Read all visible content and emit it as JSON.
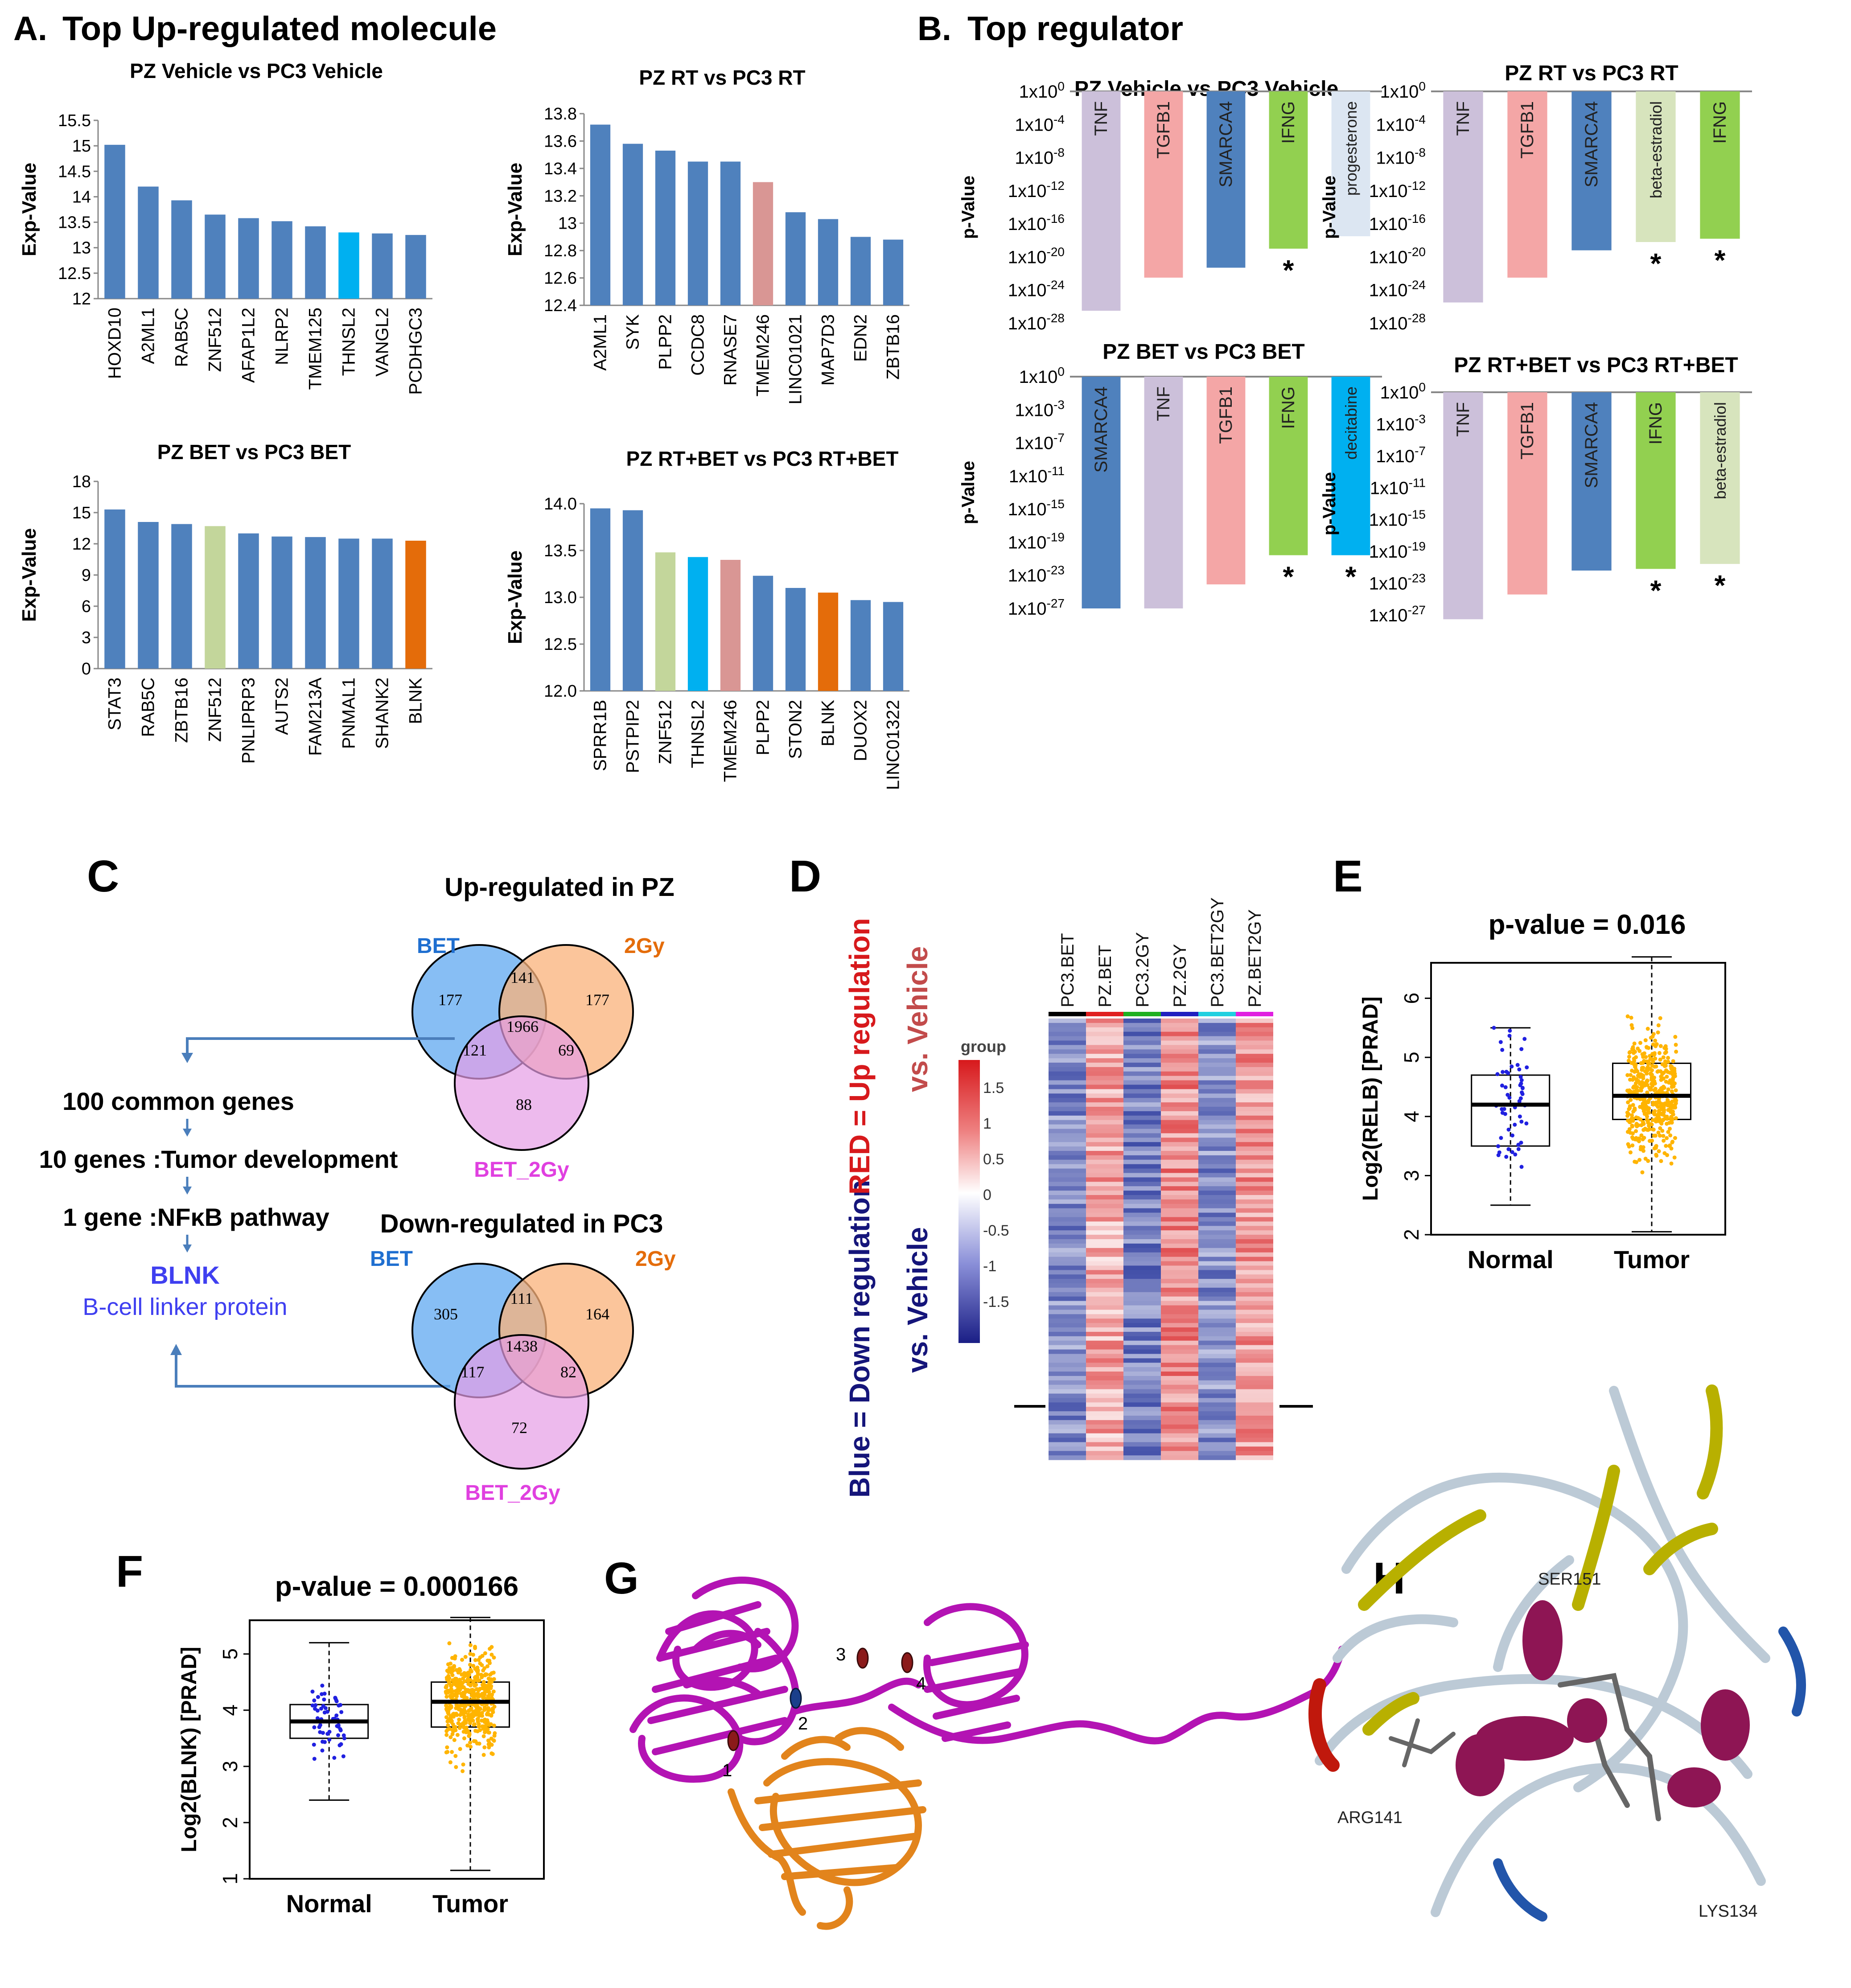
{
  "colors": {
    "bar_blue": "#4F81BD",
    "bar_cyan": "#00B0F0",
    "bar_pink": "#D99694",
    "bar_lightgreen": "#C3D69B",
    "bar_orange": "#E46C0A",
    "reg_tnf": "#CCC0DA",
    "reg_tgfb1": "#F4A6A6",
    "reg_smarca4": "#4F81BD",
    "reg_ifng": "#92D050",
    "reg_progesterone": "#DCE6F2",
    "reg_beta_estradiol": "#D7E4BD",
    "reg_decitabine": "#00B0F0",
    "venn_bet": "#5FA8F0",
    "venn_2gy": "#F9B27A",
    "venn_bet2gy": "#E59CE6",
    "label_blue": "#1F6FD0",
    "label_orange": "#E46C0A",
    "label_magenta": "#E040E0",
    "blnk_text": "#3F3FF0",
    "dots_normal": "#2020E0",
    "dots_tumor": "#FFB400",
    "heat_hi": "#D7191C",
    "heat_lo": "#2B3A9E",
    "protein_magenta": "#B313B3",
    "protein_orange": "#E2841C"
  },
  "panel_labels": {
    "A": "A.",
    "B": "B.",
    "C": "C",
    "D": "D",
    "E": "E",
    "F": "F",
    "G": "G",
    "H": "H"
  },
  "panelA": {
    "heading": "Top Up-regulated  molecule",
    "y_axis_label": "Exp-Value"
  },
  "panelB": {
    "heading": "Top regulator",
    "y_axis_label": "p-Value",
    "star": "*"
  },
  "chart_data": [
    {
      "id": "A1",
      "type": "bar",
      "title": "PZ Vehicle vs PC3 Vehicle",
      "ylabel": "Exp-Value",
      "ylim": [
        12,
        15.5
      ],
      "yticks": [
        "12",
        "12.5",
        "13",
        "13.5",
        "14",
        "14.5",
        "15",
        "15.5"
      ],
      "categories": [
        "HOXD10",
        "A2ML1",
        "RAB5C",
        "ZNF512",
        "AFAP1L2",
        "NLRP2",
        "TMEM125",
        "THNSL2",
        "VANGL2",
        "PCDHGC3"
      ],
      "values": [
        15.02,
        14.2,
        13.93,
        13.65,
        13.58,
        13.52,
        13.42,
        13.3,
        13.28,
        13.25
      ],
      "bar_colors": [
        "bar_blue",
        "bar_blue",
        "bar_blue",
        "bar_blue",
        "bar_blue",
        "bar_blue",
        "bar_blue",
        "bar_cyan",
        "bar_blue",
        "bar_blue"
      ]
    },
    {
      "id": "A2",
      "type": "bar",
      "title": "PZ RT vs PC3 RT",
      "ylabel": "Exp-Value",
      "ylim": [
        12.4,
        13.8
      ],
      "yticks": [
        "12.4",
        "12.6",
        "12.8",
        "13",
        "13.2",
        "13.4",
        "13.6",
        "13.8"
      ],
      "categories": [
        "A2ML1",
        "SYK",
        "PLPP2",
        "CCDC8",
        "RNASE7",
        "TMEM246",
        "LINC01021",
        "MAP7D3",
        "EDN2",
        "ZBTB16"
      ],
      "values": [
        13.72,
        13.58,
        13.53,
        13.45,
        13.45,
        13.3,
        13.08,
        13.03,
        12.9,
        12.88
      ],
      "bar_colors": [
        "bar_blue",
        "bar_blue",
        "bar_blue",
        "bar_blue",
        "bar_blue",
        "bar_pink",
        "bar_blue",
        "bar_blue",
        "bar_blue",
        "bar_blue"
      ]
    },
    {
      "id": "A3",
      "type": "bar",
      "title": "PZ BET vs PC3 BET",
      "ylabel": "Exp-Value",
      "ylim": [
        0,
        18
      ],
      "yticks": [
        "0",
        "3",
        "6",
        "9",
        "12",
        "15",
        "18"
      ],
      "categories": [
        "STAT3",
        "RAB5C",
        "ZBTB16",
        "ZNF512",
        "PNLIPRP3",
        "AUTS2",
        "FAM213A",
        "PNMAL1",
        "SHANK2",
        "BLNK"
      ],
      "values": [
        15.3,
        14.1,
        13.9,
        13.7,
        13.0,
        12.7,
        12.65,
        12.5,
        12.5,
        12.3
      ],
      "bar_colors": [
        "bar_blue",
        "bar_blue",
        "bar_blue",
        "bar_lightgreen",
        "bar_blue",
        "bar_blue",
        "bar_blue",
        "bar_blue",
        "bar_blue",
        "bar_orange"
      ]
    },
    {
      "id": "A4",
      "type": "bar",
      "title": "PZ RT+BET vs PC3 RT+BET",
      "ylabel": "Exp-Value",
      "ylim": [
        12,
        14
      ],
      "yticks": [
        "12.0",
        "12.5",
        "13.0",
        "13.5",
        "14.0"
      ],
      "categories": [
        "SPRR1B",
        "PSTPIP2",
        "ZNF512",
        "THNSL2",
        "TMEM246",
        "PLPP2",
        "STON2",
        "BLNK",
        "DUOX2",
        "LINC01322"
      ],
      "values": [
        13.95,
        13.93,
        13.48,
        13.43,
        13.4,
        13.23,
        13.1,
        13.05,
        12.97,
        12.95
      ],
      "bar_colors": [
        "bar_blue",
        "bar_blue",
        "bar_lightgreen",
        "bar_cyan",
        "bar_pink",
        "bar_blue",
        "bar_blue",
        "bar_orange",
        "bar_blue",
        "bar_blue"
      ]
    },
    {
      "id": "B1",
      "type": "bar",
      "title": "PZ Vehicle vs PC3 Vehicle",
      "ylabel": "p-Value",
      "scale": "log10",
      "ylim_exp": [
        0,
        -28
      ],
      "yticks": [
        "1x10^0",
        "1x10^-4",
        "1x10^-8",
        "1x10^-12",
        "1x10^-16",
        "1x10^-20",
        "1x10^-24",
        "1x10^-28"
      ],
      "categories": [
        "TNF",
        "TGFB1",
        "SMARCA4",
        "IFNG",
        "progesterone"
      ],
      "exponents": [
        -26.5,
        -22.5,
        -21.3,
        -19,
        -17.5
      ],
      "bar_colors": [
        "reg_tnf",
        "reg_tgfb1",
        "reg_smarca4",
        "reg_ifng",
        "reg_progesterone"
      ],
      "starred": [
        false,
        false,
        false,
        true,
        false
      ]
    },
    {
      "id": "B2",
      "type": "bar",
      "title": "PZ RT vs PC3 RT",
      "ylabel": "p-Value",
      "scale": "log10",
      "ylim_exp": [
        0,
        -28
      ],
      "yticks": [
        "1x10^0",
        "1x10^-4",
        "1x10^-8",
        "1x10^-12",
        "1x10^-16",
        "1x10^-20",
        "1x10^-24",
        "1x10^-28"
      ],
      "categories": [
        "TNF",
        "TGFB1",
        "SMARCA4",
        "beta-estradiol",
        "IFNG"
      ],
      "exponents": [
        -25.5,
        -22.5,
        -19.2,
        -18.2,
        -17.8
      ],
      "bar_colors": [
        "reg_tnf",
        "reg_tgfb1",
        "reg_smarca4",
        "reg_beta_estradiol",
        "reg_ifng"
      ],
      "starred": [
        false,
        false,
        false,
        true,
        true
      ]
    },
    {
      "id": "B3",
      "type": "bar",
      "title": "PZ BET vs PC3 BET",
      "ylabel": "p-Value",
      "scale": "log10",
      "ylim_exp": [
        0,
        -27
      ],
      "yticks": [
        "1x10^0",
        "1x10^-3",
        "1x10^-7",
        "1x10^-11",
        "1x10^-15",
        "1x10^-19",
        "1x10^-23",
        "1x10^-27"
      ],
      "categories": [
        "SMARCA4",
        "TNF",
        "TGFB1",
        "IFNG",
        "decitabine"
      ],
      "exponents": [
        -27,
        -27,
        -24.2,
        -20.8,
        -20.8
      ],
      "bar_colors": [
        "reg_smarca4",
        "reg_tnf",
        "reg_tgfb1",
        "reg_ifng",
        "reg_decitabine"
      ],
      "starred": [
        false,
        false,
        false,
        true,
        true
      ]
    },
    {
      "id": "B4",
      "type": "bar",
      "title": "PZ RT+BET vs PC3 RT+BET",
      "ylabel": "p-Value",
      "scale": "log10",
      "ylim_exp": [
        0,
        -27
      ],
      "yticks": [
        "1x10^0",
        "1x10^-3",
        "1x10^-7",
        "1x10^-11",
        "1x10^-15",
        "1x10^-19",
        "1x10^-23",
        "1x10^-27"
      ],
      "categories": [
        "TNF",
        "TGFB1",
        "SMARCA4",
        "IFNG",
        "beta-estradiol"
      ],
      "exponents": [
        -27.5,
        -24.5,
        -21.6,
        -21.4,
        -20.8
      ],
      "bar_colors": [
        "reg_tnf",
        "reg_tgfb1",
        "reg_smarca4",
        "reg_ifng",
        "reg_beta_estradiol"
      ],
      "starred": [
        false,
        false,
        false,
        true,
        true
      ]
    },
    {
      "id": "E",
      "type": "box",
      "title": "p-value = 0.016",
      "ylabel": "Log2(RELB) [PRAD]",
      "ylim": [
        2,
        6.6
      ],
      "yticks": [
        "2",
        "3",
        "4",
        "5",
        "6"
      ],
      "categories": [
        "Normal",
        "Tumor"
      ],
      "boxes": [
        {
          "min": 2.5,
          "q1": 3.5,
          "median": 4.2,
          "q3": 4.7,
          "max": 5.5
        },
        {
          "min": 2.05,
          "q1": 3.95,
          "median": 4.35,
          "q3": 4.9,
          "max": 6.7
        }
      ]
    },
    {
      "id": "F",
      "type": "box",
      "title": "p-value = 0.000166",
      "ylabel": "Log2(BLNK) [PRAD]",
      "ylim": [
        1,
        5.6
      ],
      "yticks": [
        "1",
        "2",
        "3",
        "4",
        "5"
      ],
      "categories": [
        "Normal",
        "Tumor"
      ],
      "boxes": [
        {
          "min": 2.4,
          "q1": 3.5,
          "median": 3.8,
          "q3": 4.1,
          "max": 5.2
        },
        {
          "min": 1.15,
          "q1": 3.7,
          "median": 4.15,
          "q3": 4.5,
          "max": 5.65
        }
      ]
    },
    {
      "id": "D",
      "type": "heatmap",
      "title": "",
      "columns": [
        "PC3.BET",
        "PZ.BET",
        "PC3.2GY",
        "PZ.2GY",
        "PC3.BET2GY",
        "PZ.BET2GY"
      ],
      "column_means": [
        -0.9,
        0.6,
        -1.0,
        0.8,
        -0.9,
        0.7
      ],
      "legend_title": "group",
      "legend_ticks": [
        "1.5",
        "1",
        "0.5",
        "0",
        "-0.5",
        "-1",
        "-1.5"
      ],
      "side_label_red": "RED = Up regulation",
      "side_label_red2": "vs. Vehicle",
      "side_label_blue": "Blue = Down regulation",
      "side_label_blue2": "vs. Vehicle"
    }
  ],
  "panelC": {
    "up_title": "Up-regulated in PZ",
    "down_title": "Down-regulated in PC3",
    "set_bet": "BET",
    "set_2gy": "2Gy",
    "set_bet2gy": "BET_2Gy",
    "up_counts": {
      "bet_only": "177",
      "gy_only": "177",
      "bet2gy_only": "88",
      "bet_gy": "141",
      "bet_bet2gy": "121",
      "gy_bet2gy": "69",
      "all": "1966"
    },
    "down_counts": {
      "bet_only": "305",
      "gy_only": "164",
      "bet2gy_only": "72",
      "bet_gy": "111",
      "bet_bet2gy": "117",
      "gy_bet2gy": "82",
      "all": "1438"
    },
    "step1": "100 common genes",
    "step2": "10 genes :Tumor development",
    "step3": "1 gene :NFκB pathway",
    "result_gene": "BLNK",
    "result_name": "B-cell linker protein"
  },
  "panelG": {
    "sites": [
      "1",
      "2",
      "3",
      "4"
    ]
  },
  "panelH": {
    "residues": [
      "SER151",
      "ARG141",
      "LYS134"
    ]
  }
}
